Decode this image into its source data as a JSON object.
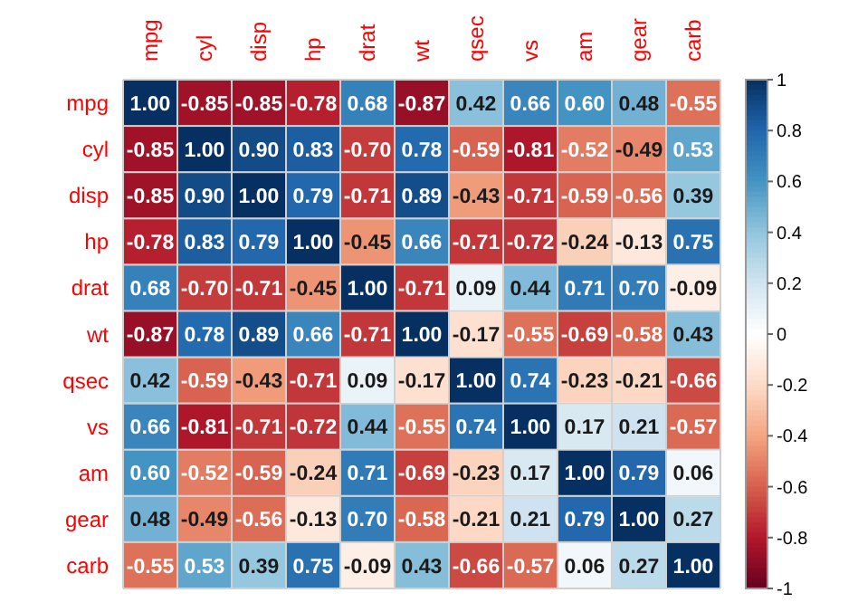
{
  "chart_data": {
    "type": "heatmap",
    "categories": [
      "mpg",
      "cyl",
      "disp",
      "hp",
      "drat",
      "wt",
      "qsec",
      "vs",
      "am",
      "gear",
      "carb"
    ],
    "y_categories": [
      "mpg",
      "cyl",
      "disp",
      "hp",
      "drat",
      "wt",
      "qsec",
      "vs",
      "am",
      "gear",
      "carb"
    ],
    "cells": [
      [
        1,
        -0.85,
        -0.85,
        -0.78,
        0.68,
        -0.87,
        0.42,
        0.66,
        0.6,
        0.48,
        -0.55
      ],
      [
        -0.85,
        1,
        0.9,
        0.83,
        -0.7,
        0.78,
        -0.59,
        -0.81,
        -0.52,
        -0.49,
        0.53
      ],
      [
        -0.85,
        0.9,
        1,
        0.79,
        -0.71,
        0.89,
        -0.43,
        -0.71,
        -0.59,
        -0.56,
        0.39
      ],
      [
        -0.78,
        0.83,
        0.79,
        1,
        -0.45,
        0.66,
        -0.71,
        -0.72,
        -0.24,
        -0.13,
        0.75
      ],
      [
        0.68,
        -0.7,
        -0.71,
        -0.45,
        1,
        -0.71,
        0.09,
        0.44,
        0.71,
        0.7,
        -0.09
      ],
      [
        -0.87,
        0.78,
        0.89,
        0.66,
        -0.71,
        1,
        -0.17,
        -0.55,
        -0.69,
        -0.58,
        0.43
      ],
      [
        0.42,
        -0.59,
        -0.43,
        -0.71,
        0.09,
        -0.17,
        1,
        0.74,
        -0.23,
        -0.21,
        -0.66
      ],
      [
        0.66,
        -0.81,
        -0.71,
        -0.72,
        0.44,
        -0.55,
        0.74,
        1,
        0.17,
        0.21,
        -0.57
      ],
      [
        0.6,
        -0.52,
        -0.59,
        -0.24,
        0.71,
        -0.69,
        -0.23,
        0.17,
        1,
        0.79,
        0.06
      ],
      [
        0.48,
        -0.49,
        -0.56,
        -0.13,
        0.7,
        -0.58,
        -0.21,
        0.21,
        0.79,
        1,
        0.27
      ],
      [
        -0.55,
        0.53,
        0.39,
        0.75,
        -0.09,
        0.43,
        -0.66,
        -0.57,
        0.06,
        0.27,
        1
      ]
    ],
    "cell_labels": [
      [
        "1.00",
        "-0.85",
        "-0.85",
        "-0.78",
        "0.68",
        "-0.87",
        "0.42",
        "0.66",
        "0.60",
        "0.48",
        "-0.55"
      ],
      [
        "-0.85",
        "1.00",
        "0.90",
        "0.83",
        "-0.70",
        "0.78",
        "-0.59",
        "-0.81",
        "-0.52",
        "-0.49",
        "0.53"
      ],
      [
        "-0.85",
        "0.90",
        "1.00",
        "0.79",
        "-0.71",
        "0.89",
        "-0.43",
        "-0.71",
        "-0.59",
        "-0.56",
        "0.39"
      ],
      [
        "-0.78",
        "0.83",
        "0.79",
        "1.00",
        "-0.45",
        "0.66",
        "-0.71",
        "-0.72",
        "-0.24",
        "-0.13",
        "0.75"
      ],
      [
        "0.68",
        "-0.70",
        "-0.71",
        "-0.45",
        "1.00",
        "-0.71",
        "0.09",
        "0.44",
        "0.71",
        "0.70",
        "-0.09"
      ],
      [
        "-0.87",
        "0.78",
        "0.89",
        "0.66",
        "-0.71",
        "1.00",
        "-0.17",
        "-0.55",
        "-0.69",
        "-0.58",
        "0.43"
      ],
      [
        "0.42",
        "-0.59",
        "-0.43",
        "-0.71",
        "0.09",
        "-0.17",
        "1.00",
        "0.74",
        "-0.23",
        "-0.21",
        "-0.66"
      ],
      [
        "0.66",
        "-0.81",
        "-0.71",
        "-0.72",
        "0.44",
        "-0.55",
        "0.74",
        "1.00",
        "0.17",
        "0.21",
        "-0.57"
      ],
      [
        "0.60",
        "-0.52",
        "-0.59",
        "-0.24",
        "0.71",
        "-0.69",
        "-0.23",
        "0.17",
        "1.00",
        "0.79",
        "0.06"
      ],
      [
        "0.48",
        "-0.49",
        "-0.56",
        "-0.13",
        "0.70",
        "-0.58",
        "-0.21",
        "0.21",
        "0.79",
        "1.00",
        "0.27"
      ],
      [
        "-0.55",
        "0.53",
        "0.39",
        "0.75",
        "-0.09",
        "0.43",
        "-0.66",
        "-0.57",
        "0.06",
        "0.27",
        "1.00"
      ]
    ],
    "clim": [
      -1,
      1
    ],
    "cticks": [
      -1,
      -0.8,
      -0.6,
      -0.4,
      -0.2,
      0,
      0.2,
      0.4,
      0.6,
      0.8,
      1
    ]
  }
}
